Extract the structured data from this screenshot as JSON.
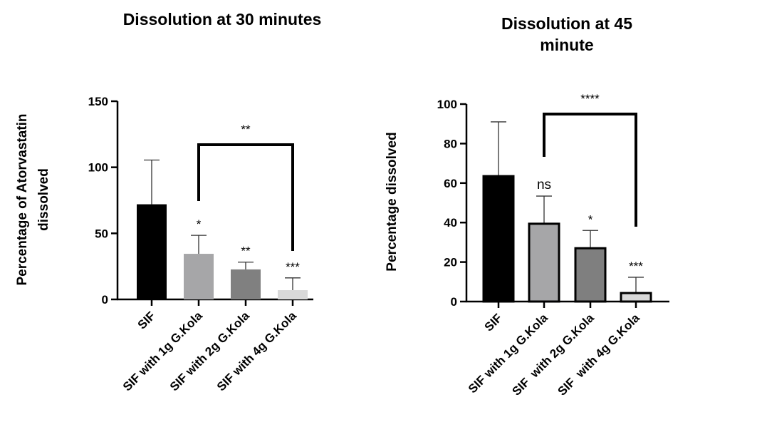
{
  "chart_data": [
    {
      "type": "bar",
      "title": "Dissolution at 30 minutes",
      "y_label": [
        "Percentage of Atorvastatin",
        "dissolved"
      ],
      "categories": [
        "SIF",
        "SIF with 1g G.Kola",
        "SIF with 2g G.Kola",
        "SIF with 4g G.Kola"
      ],
      "values": [
        72,
        34.5,
        22.7,
        7
      ],
      "errors": [
        33.5,
        14,
        5.5,
        9.3
      ],
      "colors": [
        "#000000",
        "#a6a6a8",
        "#808080",
        "#d9d9d9"
      ],
      "outline": false,
      "bar_labels": [
        null,
        "*",
        "**",
        "***"
      ],
      "comparison_label": "**",
      "ylim": [
        0,
        150
      ],
      "yticks": [
        0,
        50,
        100,
        150
      ]
    },
    {
      "type": "bar",
      "title": [
        "Dissolution at 45",
        "minute"
      ],
      "y_label": [
        "Percentage dissolved"
      ],
      "categories": [
        "SIF",
        "SIF with 1g G.Kola",
        "SIF  with 2g G.Kola",
        "SIF  with 4g G.Kola"
      ],
      "values": [
        63.5,
        39.4,
        27,
        4.3
      ],
      "errors": [
        27.5,
        14,
        9,
        8
      ],
      "colors": [
        "#000000",
        "#a6a6a8",
        "#7f7f7f",
        "#d9d9d9"
      ],
      "outline": true,
      "bar_labels": [
        null,
        "ns",
        "*",
        "***"
      ],
      "comparison_label": "****",
      "ylim": [
        0,
        100
      ],
      "yticks": [
        0,
        20,
        40,
        60,
        80,
        100
      ]
    }
  ]
}
